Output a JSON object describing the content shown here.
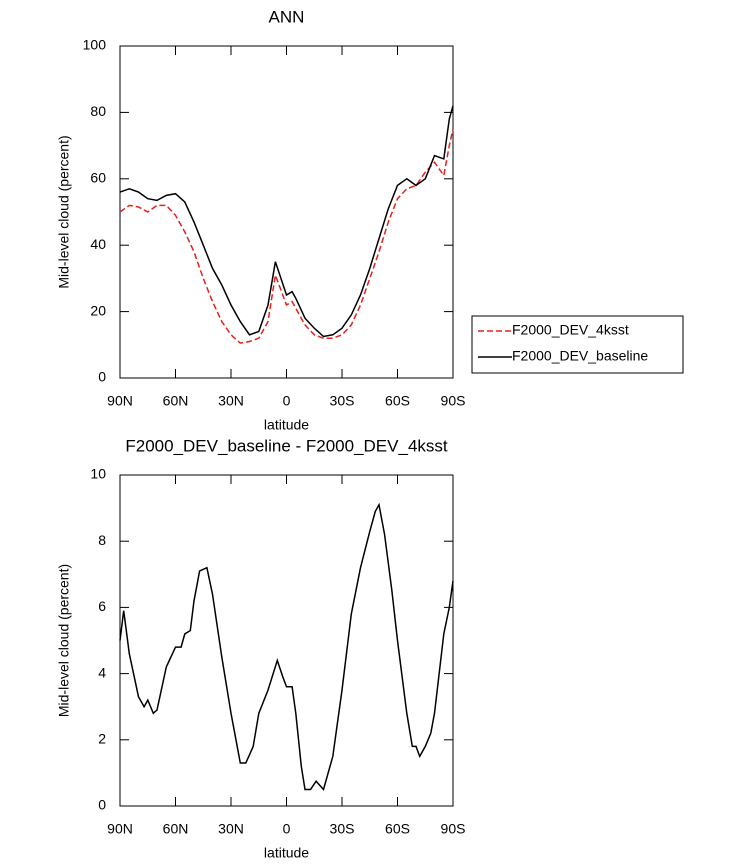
{
  "chart_data": [
    {
      "type": "line",
      "title": "ANN",
      "xlabel": "latitude",
      "ylabel": "Mid-level cloud (percent)",
      "x": [
        90,
        85,
        80,
        75,
        70,
        65,
        60,
        55,
        50,
        45,
        40,
        35,
        30,
        25,
        20,
        15,
        10,
        6,
        0,
        -3,
        -5,
        -10,
        -15,
        -20,
        -25,
        -30,
        -35,
        -40,
        -45,
        -50,
        -55,
        -60,
        -65,
        -70,
        -75,
        -80,
        -85,
        -88,
        -90
      ],
      "series": [
        {
          "name": "F2000_DEV_4ksst",
          "color": "#e8201c",
          "dash": true,
          "values": [
            50,
            52,
            51.5,
            50,
            52,
            52,
            49,
            44,
            38,
            30,
            23,
            17,
            13,
            10.5,
            11,
            12,
            17,
            31,
            22,
            23,
            21,
            16,
            13,
            12,
            12,
            13,
            16,
            22,
            30,
            38,
            47,
            54,
            57,
            58,
            62,
            65,
            61,
            70,
            75
          ]
        },
        {
          "name": "F2000_DEV_baseline",
          "color": "#000000",
          "dash": false,
          "values": [
            56,
            57,
            56,
            54,
            53.5,
            55,
            55.5,
            53,
            47,
            40,
            33,
            28,
            22,
            17,
            13,
            14,
            22,
            35,
            25,
            26,
            24,
            18,
            15,
            12.5,
            13,
            15,
            19,
            25,
            33,
            42,
            51,
            58,
            60,
            58,
            60,
            67,
            66,
            78,
            82
          ]
        }
      ],
      "xlim": [
        90,
        -90
      ],
      "xticks": [
        {
          "value": 90,
          "label": "90N"
        },
        {
          "value": 60,
          "label": "60N"
        },
        {
          "value": 30,
          "label": "30N"
        },
        0,
        {
          "value": -30,
          "label": "30S"
        },
        {
          "value": -60,
          "label": "60S"
        },
        {
          "value": -90,
          "label": "90S"
        }
      ],
      "ylim": [
        0,
        100
      ],
      "yticks": [
        0,
        20,
        40,
        60,
        80,
        100
      ],
      "legend": "right"
    },
    {
      "type": "line",
      "title": "F2000_DEV_baseline - F2000_DEV_4ksst",
      "xlabel": "latitude",
      "ylabel": "Mid-level cloud (percent)",
      "x": [
        90,
        88,
        85,
        80,
        77,
        75,
        72,
        70,
        65,
        60,
        57,
        55,
        52,
        50,
        47,
        43,
        40,
        35,
        30,
        25,
        22,
        18,
        15,
        10,
        5,
        2,
        0,
        -3,
        -5,
        -8,
        -10,
        -13,
        -16,
        -20,
        -25,
        -30,
        -35,
        -40,
        -45,
        -48,
        -50,
        -53,
        -57,
        -60,
        -65,
        -68,
        -70,
        -72,
        -75,
        -78,
        -80,
        -85,
        -88,
        -90
      ],
      "values": [
        5,
        5.9,
        4.6,
        3.3,
        3.0,
        3.2,
        2.8,
        2.9,
        4.2,
        4.8,
        4.8,
        5.2,
        5.3,
        6.2,
        7.1,
        7.2,
        6.4,
        4.5,
        2.8,
        1.3,
        1.3,
        1.8,
        2.8,
        3.5,
        4.4,
        3.9,
        3.6,
        3.6,
        2.8,
        1.2,
        0.5,
        0.5,
        0.75,
        0.5,
        1.5,
        3.5,
        5.8,
        7.2,
        8.3,
        8.9,
        9.1,
        8.2,
        6.5,
        5,
        2.8,
        1.8,
        1.8,
        1.5,
        1.8,
        2.2,
        2.8,
        5.2,
        6,
        6.8
      ],
      "color": "#000000",
      "xlim": [
        90,
        -90
      ],
      "xticks": [
        {
          "value": 90,
          "label": "90N"
        },
        {
          "value": 60,
          "label": "60N"
        },
        {
          "value": 30,
          "label": "30N"
        },
        0,
        {
          "value": -30,
          "label": "30S"
        },
        {
          "value": -60,
          "label": "60S"
        },
        {
          "value": -90,
          "label": "90S"
        }
      ],
      "ylim": [
        0,
        10
      ],
      "yticks": [
        0,
        2,
        4,
        6,
        8,
        10
      ]
    }
  ]
}
